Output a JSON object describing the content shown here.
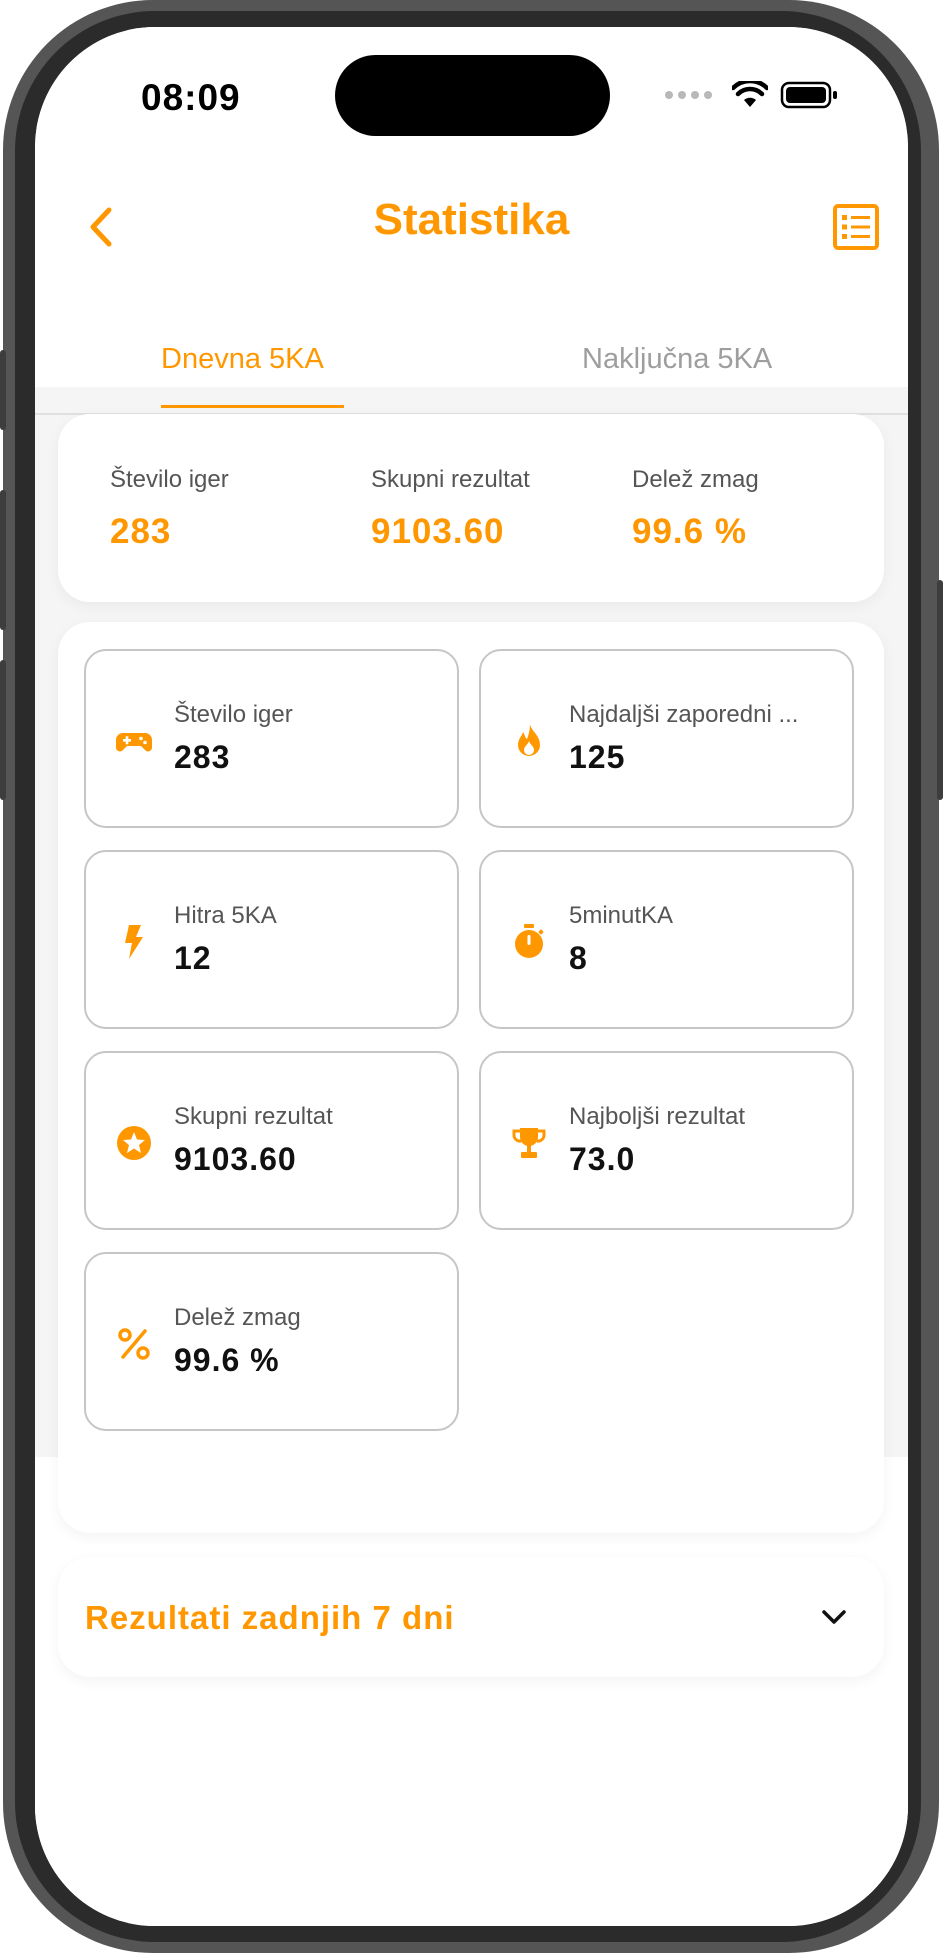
{
  "status": {
    "time": "08:09"
  },
  "header": {
    "title": "Statistika"
  },
  "tabs": [
    {
      "label": "Dnevna 5KA",
      "active": true
    },
    {
      "label": "Naključna 5KA",
      "active": false
    }
  ],
  "summary": [
    {
      "label": "Število iger",
      "value": "283"
    },
    {
      "label": "Skupni rezultat",
      "value": "9103.60"
    },
    {
      "label": "Delež zmag",
      "value": "99.6 %"
    }
  ],
  "stats": [
    {
      "icon": "gamepad-icon",
      "label": "Število iger",
      "value": "283"
    },
    {
      "icon": "flame-icon",
      "label": "Najdaljši zaporedni ...",
      "value": "125"
    },
    {
      "icon": "lightning-icon",
      "label": "Hitra 5KA",
      "value": "12"
    },
    {
      "icon": "stopwatch-icon",
      "label": "5minutKA",
      "value": "8"
    },
    {
      "icon": "star-icon",
      "label": "Skupni rezultat",
      "value": "9103.60"
    },
    {
      "icon": "trophy-icon",
      "label": "Najboljši rezultat",
      "value": "73.0"
    },
    {
      "icon": "percent-icon",
      "label": "Delež zmag",
      "value": "99.6 %"
    }
  ],
  "results_section": {
    "label": "Rezultati zadnjih 7 dni"
  },
  "colors": {
    "accent": "#ff9800",
    "inactive": "#9e9e9e"
  }
}
